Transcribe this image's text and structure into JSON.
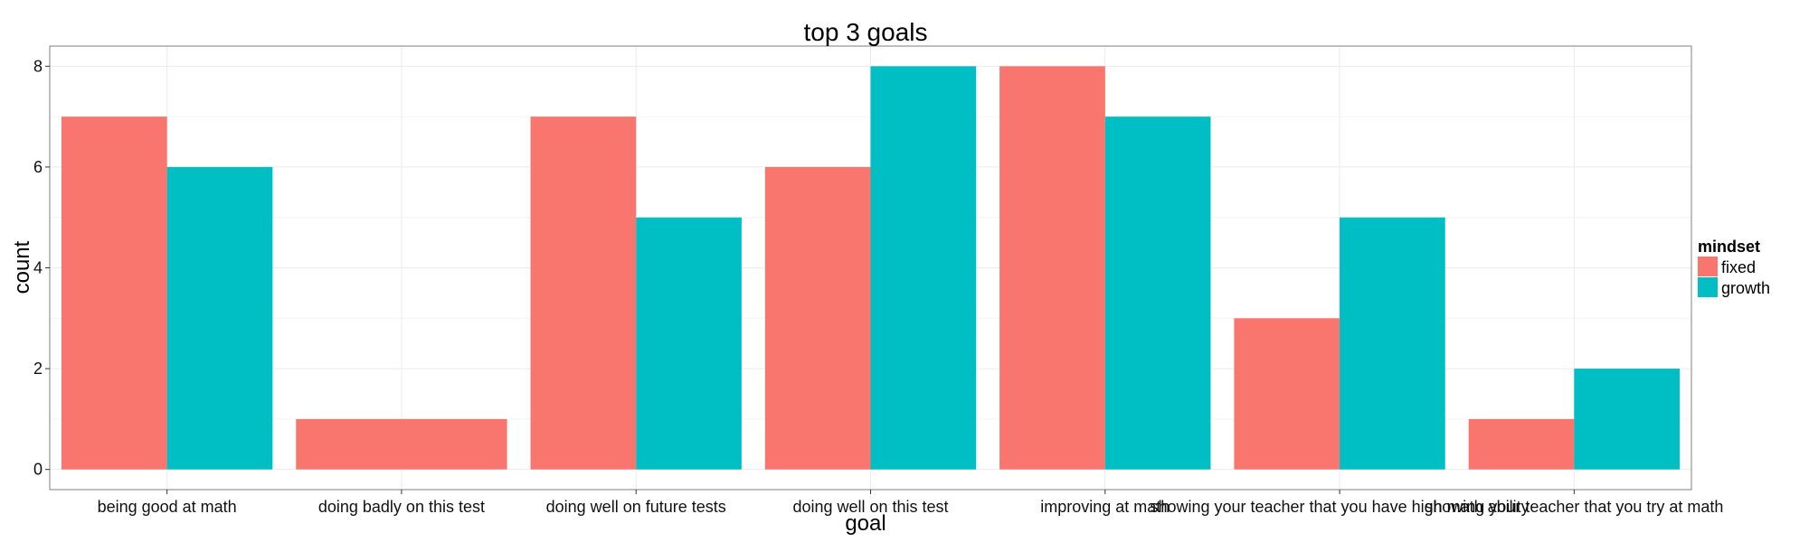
{
  "chart_data": {
    "type": "bar",
    "title": "top 3 goals",
    "xlabel": "goal",
    "ylabel": "count",
    "ylim": [
      -0.4,
      8.4
    ],
    "yticks": [
      0,
      2,
      4,
      6,
      8
    ],
    "grid": true,
    "legend_position": "right",
    "categories": [
      "being good at math",
      "doing badly on this test",
      "doing well on future tests",
      "doing well on this test",
      "improving at math",
      "showing your teacher that you have high math ability",
      "showing your teacher that you try at math"
    ],
    "legend": {
      "title": "mindset",
      "entries": [
        "fixed",
        "growth"
      ]
    },
    "series": [
      {
        "name": "fixed",
        "color": "#F8766D",
        "values": [
          7,
          1,
          7,
          6,
          8,
          3,
          1
        ]
      },
      {
        "name": "growth",
        "color": "#00BFC4",
        "values": [
          6,
          0,
          5,
          8,
          7,
          5,
          2
        ]
      }
    ]
  }
}
